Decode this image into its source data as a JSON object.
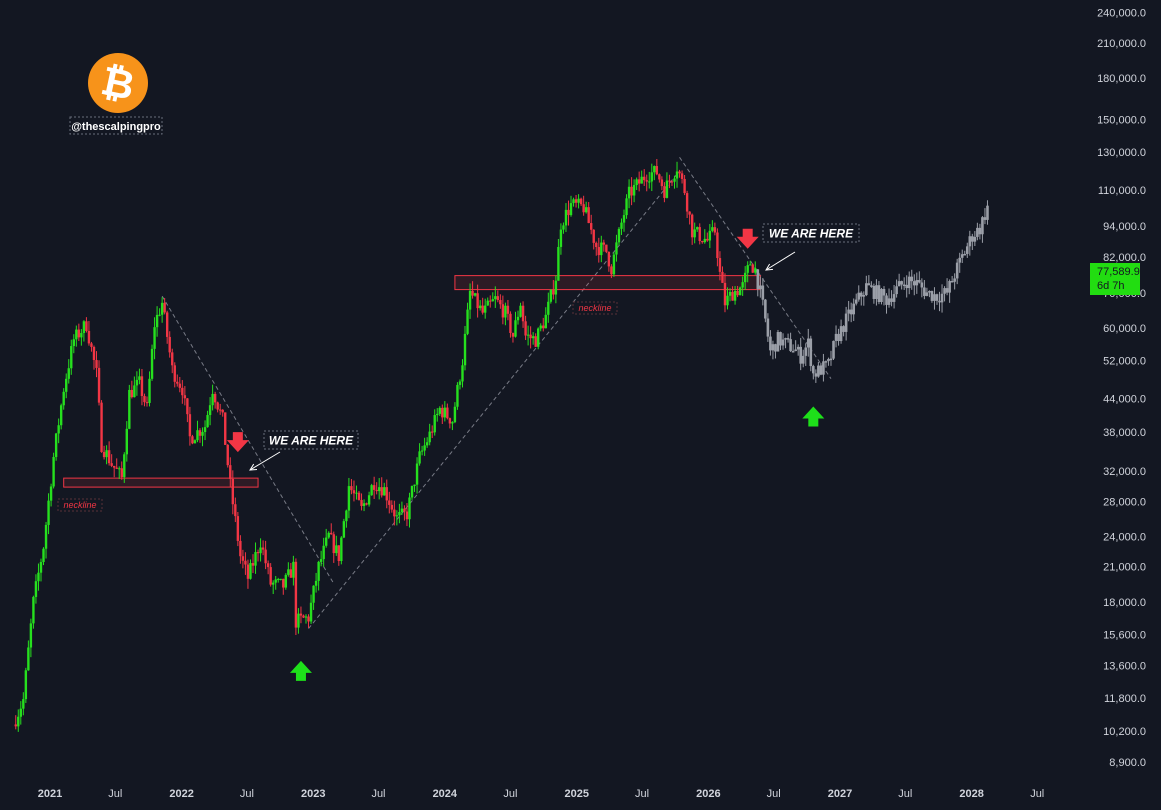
{
  "chart_data": {
    "type": "candlestick",
    "symbol_handle": "@thescalpingpro",
    "y_scale": "log",
    "ylim": [
      8200,
      262000
    ],
    "y_ticks": [
      "8,900.0",
      "10,200.0",
      "11,800.0",
      "13,600.0",
      "15,600.0",
      "18,000.0",
      "21,000.0",
      "24,000.0",
      "28,000.0",
      "32,000.0",
      "38,000.0",
      "44,000.0",
      "52,000.0",
      "60,000.0",
      "70,000.0",
      "82,000.0",
      "94,000.0",
      "110,000.0",
      "130,000.0",
      "150,000.0",
      "180,000.0",
      "210,000.0",
      "240,000.0"
    ],
    "y_tick_values": [
      8900,
      10200,
      11800,
      13600,
      15600,
      18000,
      21000,
      24000,
      28000,
      32000,
      38000,
      44000,
      52000,
      60000,
      70000,
      82000,
      94000,
      110000,
      130000,
      150000,
      180000,
      210000,
      240000
    ],
    "x_ticks": [
      {
        "label": "2021",
        "date": "2021-01-01",
        "year": true
      },
      {
        "label": "Jul",
        "date": "2021-07-01",
        "year": false
      },
      {
        "label": "2022",
        "date": "2022-01-01",
        "year": true
      },
      {
        "label": "Jul",
        "date": "2022-07-01",
        "year": false
      },
      {
        "label": "2023",
        "date": "2023-01-01",
        "year": true
      },
      {
        "label": "Jul",
        "date": "2023-07-01",
        "year": false
      },
      {
        "label": "2024",
        "date": "2024-01-01",
        "year": true
      },
      {
        "label": "Jul",
        "date": "2024-07-01",
        "year": false
      },
      {
        "label": "2025",
        "date": "2025-01-01",
        "year": true
      },
      {
        "label": "Jul",
        "date": "2025-07-01",
        "year": false
      },
      {
        "label": "2026",
        "date": "2026-01-01",
        "year": true
      },
      {
        "label": "Jul",
        "date": "2026-07-01",
        "year": false
      },
      {
        "label": "2027",
        "date": "2027-01-01",
        "year": true
      },
      {
        "label": "Jul",
        "date": "2027-07-01",
        "year": false
      },
      {
        "label": "2028",
        "date": "2028-01-01",
        "year": true
      },
      {
        "label": "Jul",
        "date": "2028-07-01",
        "year": false
      }
    ],
    "price_path": [
      [
        "2020-09-21",
        10500
      ],
      [
        "2020-10-19",
        11700
      ],
      [
        "2020-11-16",
        18000
      ],
      [
        "2020-12-14",
        23000
      ],
      [
        "2021-01-11",
        34000
      ],
      [
        "2021-02-08",
        46000
      ],
      [
        "2021-03-08",
        57000
      ],
      [
        "2021-04-12",
        61000
      ],
      [
        "2021-05-10",
        49000
      ],
      [
        "2021-05-24",
        36000
      ],
      [
        "2021-06-21",
        33000
      ],
      [
        "2021-07-19",
        31000
      ],
      [
        "2021-08-09",
        45000
      ],
      [
        "2021-09-06",
        47000
      ],
      [
        "2021-09-27",
        42000
      ],
      [
        "2021-10-18",
        61000
      ],
      [
        "2021-11-08",
        67000
      ],
      [
        "2021-12-06",
        50000
      ],
      [
        "2022-01-03",
        46000
      ],
      [
        "2022-01-24",
        37000
      ],
      [
        "2022-03-07",
        39000
      ],
      [
        "2022-03-28",
        46000
      ],
      [
        "2022-04-25",
        40000
      ],
      [
        "2022-05-16",
        30000
      ],
      [
        "2022-06-13",
        22000
      ],
      [
        "2022-07-04",
        20000
      ],
      [
        "2022-08-08",
        23500
      ],
      [
        "2022-09-05",
        19500
      ],
      [
        "2022-10-10",
        19300
      ],
      [
        "2022-11-07",
        21000
      ],
      [
        "2022-11-14",
        16500
      ],
      [
        "2022-12-19",
        16800
      ],
      [
        "2023-01-16",
        21000
      ],
      [
        "2023-02-13",
        24000
      ],
      [
        "2023-03-13",
        22000
      ],
      [
        "2023-04-10",
        30000
      ],
      [
        "2023-05-15",
        27000
      ],
      [
        "2023-06-19",
        30500
      ],
      [
        "2023-07-17",
        29500
      ],
      [
        "2023-08-21",
        26000
      ],
      [
        "2023-09-18",
        26500
      ],
      [
        "2023-10-23",
        34000
      ],
      [
        "2023-11-20",
        37500
      ],
      [
        "2023-12-18",
        42000
      ],
      [
        "2024-01-22",
        40000
      ],
      [
        "2024-02-19",
        52000
      ],
      [
        "2024-03-11",
        70000
      ],
      [
        "2024-04-15",
        64000
      ],
      [
        "2024-05-20",
        68000
      ],
      [
        "2024-06-17",
        64000
      ],
      [
        "2024-07-08",
        58000
      ],
      [
        "2024-07-29",
        67000
      ],
      [
        "2024-08-12",
        58000
      ],
      [
        "2024-09-09",
        57000
      ],
      [
        "2024-10-07",
        63000
      ],
      [
        "2024-11-04",
        75000
      ],
      [
        "2024-11-18",
        95000
      ],
      [
        "2024-12-16",
        103000
      ],
      [
        "2025-01-20",
        102000
      ],
      [
        "2025-02-24",
        86000
      ],
      [
        "2025-03-24",
        84000
      ],
      [
        "2025-04-07",
        78000
      ],
      [
        "2025-05-05",
        95000
      ],
      [
        "2025-05-26",
        108000
      ],
      [
        "2025-07-14",
        118000
      ],
      [
        "2025-08-11",
        119000
      ],
      [
        "2025-09-01",
        110000
      ],
      [
        "2025-10-06",
        122000
      ],
      [
        "2025-10-27",
        110000
      ],
      [
        "2025-11-17",
        92000
      ],
      [
        "2025-12-08",
        90000
      ],
      [
        "2025-12-29",
        88000
      ],
      [
        "2026-01-19",
        92000
      ],
      [
        "2026-02-02",
        76000
      ],
      [
        "2026-02-16",
        67000
      ],
      [
        "2026-03-09",
        70000
      ],
      [
        "2026-04-06",
        72000
      ],
      [
        "2026-04-27",
        80000
      ],
      [
        "2026-05-11",
        77589.9
      ]
    ],
    "projection_path": [
      [
        "2026-05-11",
        77589.9
      ],
      [
        "2026-05-25",
        70000
      ],
      [
        "2026-06-08",
        62000
      ],
      [
        "2026-06-22",
        54000
      ],
      [
        "2026-07-13",
        57000
      ],
      [
        "2026-08-03",
        56000
      ],
      [
        "2026-08-24",
        55000
      ],
      [
        "2026-09-14",
        53000
      ],
      [
        "2026-10-05",
        56000
      ],
      [
        "2026-10-19",
        49000
      ],
      [
        "2026-11-09",
        50000
      ],
      [
        "2026-11-30",
        51000
      ],
      [
        "2026-12-21",
        57000
      ],
      [
        "2027-01-18",
        62000
      ],
      [
        "2027-02-15",
        67000
      ],
      [
        "2027-03-15",
        72000
      ],
      [
        "2027-04-12",
        70000
      ],
      [
        "2027-05-10",
        68000
      ],
      [
        "2027-06-07",
        71000
      ],
      [
        "2027-07-05",
        74000
      ],
      [
        "2027-08-02",
        73000
      ],
      [
        "2027-08-30",
        70000
      ],
      [
        "2027-09-27",
        69000
      ],
      [
        "2027-10-25",
        70000
      ],
      [
        "2027-11-15",
        76000
      ],
      [
        "2027-12-06",
        82000
      ],
      [
        "2028-01-03",
        90000
      ],
      [
        "2028-01-24",
        93000
      ],
      [
        "2028-02-14",
        102000
      ]
    ],
    "annotations": {
      "we_are_here_label": "WE ARE HERE",
      "neckline_label": "neckline",
      "neckline_2022": {
        "price_low": 29800,
        "price_high": 31000,
        "from": "2021-02-08",
        "to": "2022-08-01"
      },
      "neckline_2026": {
        "price_low": 71000,
        "price_high": 75500,
        "from": "2024-01-29",
        "to": "2026-05-25"
      },
      "trendlines": [
        {
          "from": [
            "2021-11-08",
            69000
          ],
          "to": [
            "2023-02-27",
            19500
          ]
        },
        {
          "from": [
            "2022-12-19",
            16000
          ],
          "to": [
            "2025-10-06",
            118000
          ]
        },
        {
          "from": [
            "2025-10-13",
            127000
          ],
          "to": [
            "2026-12-07",
            48000
          ]
        }
      ],
      "arrows_down": [
        [
          "2022-06-06",
          36000
        ],
        [
          "2026-04-20",
          88000
        ]
      ],
      "arrows_up": [
        [
          "2022-11-28",
          13400
        ],
        [
          "2026-10-19",
          41000
        ]
      ]
    },
    "last_price": "77,589.9",
    "countdown": "6d 7h",
    "colors": {
      "background": "#131722",
      "up": "#26e01e",
      "down": "#f23645",
      "projection": "#9b9fa8",
      "neckline": "#f23645",
      "price_tag": "#22dd11",
      "logo": "#f7931a",
      "trendline": "#787b86"
    }
  }
}
